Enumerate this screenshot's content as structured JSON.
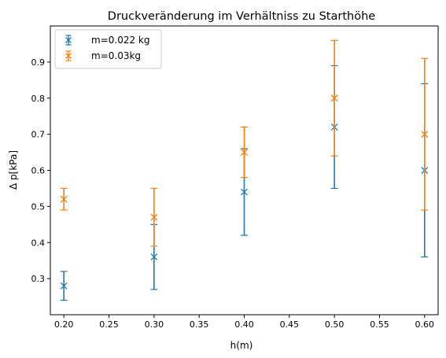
{
  "chart_data": {
    "type": "scatter",
    "title": "Druckveränderung im Verhältniss zu Starthöhe",
    "xlabel": "h(m)",
    "ylabel": "Δ p[kPa]",
    "xlim": [
      0.185,
      0.615
    ],
    "ylim": [
      0.2,
      1.0
    ],
    "xticks": [
      "0.20",
      "0.25",
      "0.30",
      "0.35",
      "0.40",
      "0.45",
      "0.50",
      "0.55",
      "0.60"
    ],
    "yticks": [
      "0.3",
      "0.4",
      "0.5",
      "0.6",
      "0.7",
      "0.8",
      "0.9"
    ],
    "grid": false,
    "legend_position": "top-left",
    "marker": "x",
    "series": [
      {
        "name": "m=0.022 kg",
        "color": "#1f77b4",
        "x": [
          0.2,
          0.3,
          0.4,
          0.5,
          0.6
        ],
        "y": [
          0.28,
          0.36,
          0.54,
          0.72,
          0.6
        ],
        "yerr": [
          0.04,
          0.09,
          0.12,
          0.17,
          0.24
        ]
      },
      {
        "name": "m=0.03kg",
        "color": "#ff7f0e",
        "x": [
          0.2,
          0.3,
          0.4,
          0.5,
          0.6
        ],
        "y": [
          0.52,
          0.47,
          0.65,
          0.8,
          0.7
        ],
        "yerr": [
          0.03,
          0.08,
          0.07,
          0.16,
          0.21
        ]
      }
    ]
  }
}
